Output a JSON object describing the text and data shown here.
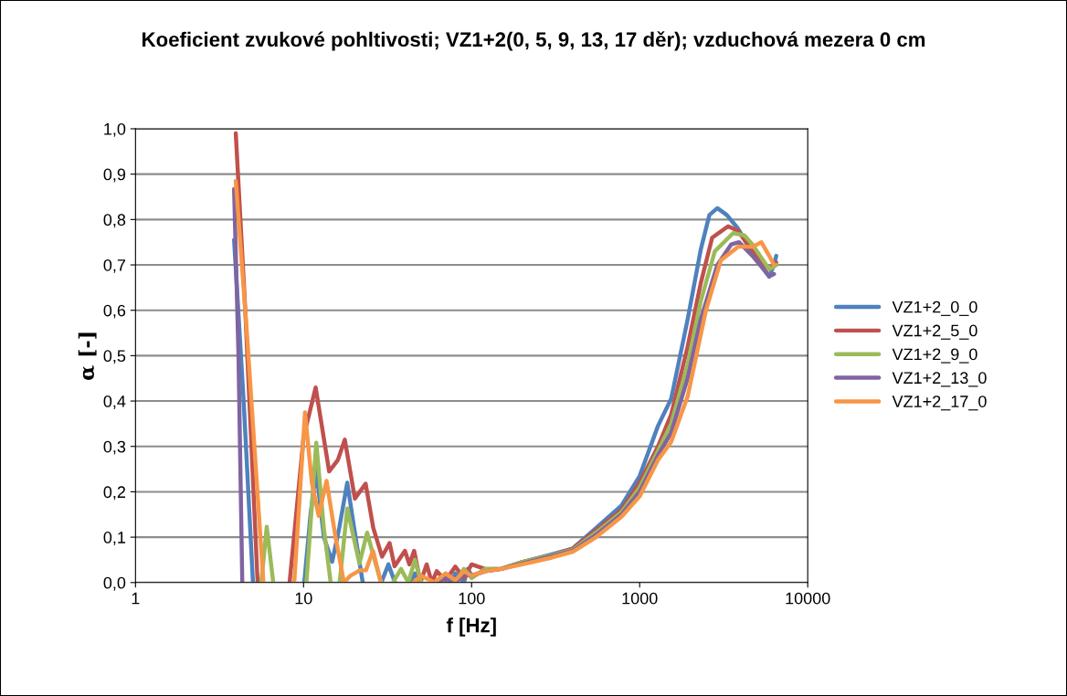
{
  "chart_data": {
    "type": "line",
    "title": "Koeficient zvukové pohltivosti; VZ1+2(0, 5, 9, 13, 17 děr); vzduchová mezera 0 cm",
    "xlabel": "f [Hz]",
    "ylabel": "α [-]",
    "log": "x",
    "xlim": [
      1,
      10000
    ],
    "xticks": [
      1,
      10,
      100,
      1000,
      10000
    ],
    "ylim": [
      0,
      1
    ],
    "yticks": [
      {
        "value": 0,
        "label": "0,0"
      },
      {
        "value": 0.1,
        "label": "0,1"
      },
      {
        "value": 0.2,
        "label": "0,2"
      },
      {
        "value": 0.3,
        "label": "0,3"
      },
      {
        "value": 0.4,
        "label": "0,4"
      },
      {
        "value": 0.5,
        "label": "0,5"
      },
      {
        "value": 0.6,
        "label": "0,6"
      },
      {
        "value": 0.7,
        "label": "0,7"
      },
      {
        "value": 0.8,
        "label": "0,8"
      },
      {
        "value": 0.9,
        "label": "0,9"
      },
      {
        "value": 1.0,
        "label": "1,0"
      }
    ],
    "grid": "y",
    "legend": "right",
    "marker": "none",
    "line_style": "solid",
    "series": [
      {
        "name": "VZ1+2_0_0",
        "color": "#4f81bd",
        "x": [
          3.86,
          4.4,
          5.0,
          7,
          10.1,
          11.0,
          11.9,
          13.2,
          14.8,
          16.3,
          18.2,
          20.0,
          22.5,
          27,
          29,
          32,
          35,
          40,
          43,
          46,
          50,
          60,
          65,
          70,
          75,
          80,
          90,
          95,
          100,
          120,
          150,
          200,
          300,
          400,
          550,
          780,
          1000,
          1285,
          1540,
          1930,
          2310,
          2600,
          2900,
          3300,
          3850,
          4690,
          5900,
          6300,
          6500
        ],
        "values": [
          0.755,
          0.4,
          0,
          null,
          0,
          0.15,
          0.248,
          0.1,
          0.046,
          0.12,
          0.22,
          0.12,
          0,
          null,
          0,
          0.04,
          0,
          null,
          0,
          0.02,
          0,
          null,
          0,
          0.015,
          0,
          0.02,
          0,
          0.03,
          0.015,
          0.025,
          0.03,
          0.045,
          0.062,
          0.075,
          0.12,
          0.17,
          0.235,
          0.345,
          0.405,
          0.58,
          0.734,
          0.81,
          0.825,
          0.81,
          0.78,
          0.726,
          0.674,
          0.7,
          0.72
        ]
      },
      {
        "name": "VZ1+2_5_0",
        "color": "#c0504d",
        "x": [
          3.95,
          4.5,
          5.33,
          7,
          8.26,
          10,
          11.8,
          14.2,
          16,
          17.6,
          20.2,
          23.4,
          26,
          29.3,
          32.5,
          34.8,
          40.1,
          42.6,
          45.5,
          49.6,
          54,
          58,
          62,
          70,
          80,
          90,
          100,
          120,
          150,
          200,
          300,
          400,
          550,
          780,
          1000,
          1285,
          1540,
          1930,
          2310,
          2700,
          3360,
          3850,
          4690,
          5900,
          6500
        ],
        "values": [
          0.99,
          0.6,
          0,
          null,
          0,
          0.32,
          0.43,
          0.245,
          0.27,
          0.315,
          0.185,
          0.218,
          0.12,
          0.057,
          0.087,
          0.036,
          0.07,
          0.04,
          0.07,
          0,
          0.04,
          0,
          0.025,
          0.005,
          0.035,
          0.01,
          0.04,
          0.03,
          0.03,
          0.045,
          0.06,
          0.075,
          0.115,
          0.16,
          0.22,
          0.3,
          0.37,
          0.52,
          0.66,
          0.76,
          0.785,
          0.775,
          0.73,
          0.69,
          0.705
        ]
      },
      {
        "name": "VZ1+2_9_0",
        "color": "#9bbb59",
        "x": [
          5.6,
          6.04,
          6.6,
          8,
          10.4,
          11.9,
          13.2,
          14.5,
          15,
          16.4,
          18.2,
          21.5,
          23.9,
          26,
          28.9,
          32,
          34,
          38,
          42,
          46,
          50,
          55,
          60,
          70,
          80,
          90,
          100,
          120,
          150,
          200,
          300,
          400,
          550,
          780,
          1000,
          1285,
          1540,
          1930,
          2310,
          2800,
          3600,
          4200,
          4690,
          5900,
          6500
        ],
        "values": [
          0,
          0.123,
          0,
          null,
          0,
          0.308,
          0.12,
          0,
          null,
          0,
          0.163,
          0.042,
          0.11,
          0.06,
          0,
          null,
          0,
          0.03,
          0,
          0.05,
          0,
          null,
          0,
          0.02,
          0,
          0.03,
          0.01,
          0.03,
          0.03,
          0.045,
          0.06,
          0.072,
          0.11,
          0.155,
          0.21,
          0.29,
          0.35,
          0.48,
          0.62,
          0.73,
          0.77,
          0.765,
          0.745,
          0.69,
          0.7
        ]
      },
      {
        "name": "VZ1+2_13_0",
        "color": "#8064a2",
        "x": [
          3.86,
          4.1,
          4.32,
          10,
          60,
          70,
          80,
          90,
          100,
          120,
          150,
          200,
          300,
          400,
          550,
          780,
          1000,
          1285,
          1540,
          1930,
          2310,
          2900,
          3500,
          3900,
          4690,
          5900,
          6300
        ],
        "values": [
          0.867,
          0.5,
          0,
          null,
          0,
          0.01,
          0,
          0.02,
          0.015,
          0.025,
          0.03,
          0.042,
          0.058,
          0.07,
          0.105,
          0.15,
          0.2,
          0.28,
          0.33,
          0.45,
          0.58,
          0.7,
          0.745,
          0.75,
          0.72,
          0.675,
          0.68
        ]
      },
      {
        "name": "VZ1+2_17_0",
        "color": "#f79646",
        "x": [
          3.95,
          4.6,
          5.77,
          7,
          8.8,
          10.2,
          11.2,
          12.3,
          13.7,
          15.5,
          17.4,
          19,
          21.6,
          23.5,
          25.9,
          28.9,
          35,
          45,
          50,
          60,
          70,
          80,
          90,
          100,
          120,
          150,
          200,
          300,
          400,
          550,
          780,
          1000,
          1285,
          1540,
          1930,
          2480,
          3040,
          3850,
          4700,
          5300,
          5900,
          6300
        ],
        "values": [
          0.885,
          0.55,
          0,
          null,
          0,
          0.375,
          0.22,
          0.147,
          0.224,
          0.1,
          0,
          0.015,
          0.027,
          0.027,
          0.07,
          0,
          null,
          0,
          0.015,
          0,
          0.02,
          0.005,
          0.025,
          0.015,
          0.025,
          0.03,
          0.04,
          0.055,
          0.068,
          0.1,
          0.145,
          0.19,
          0.27,
          0.31,
          0.41,
          0.6,
          0.71,
          0.74,
          0.74,
          0.75,
          0.72,
          0.7
        ]
      }
    ]
  }
}
